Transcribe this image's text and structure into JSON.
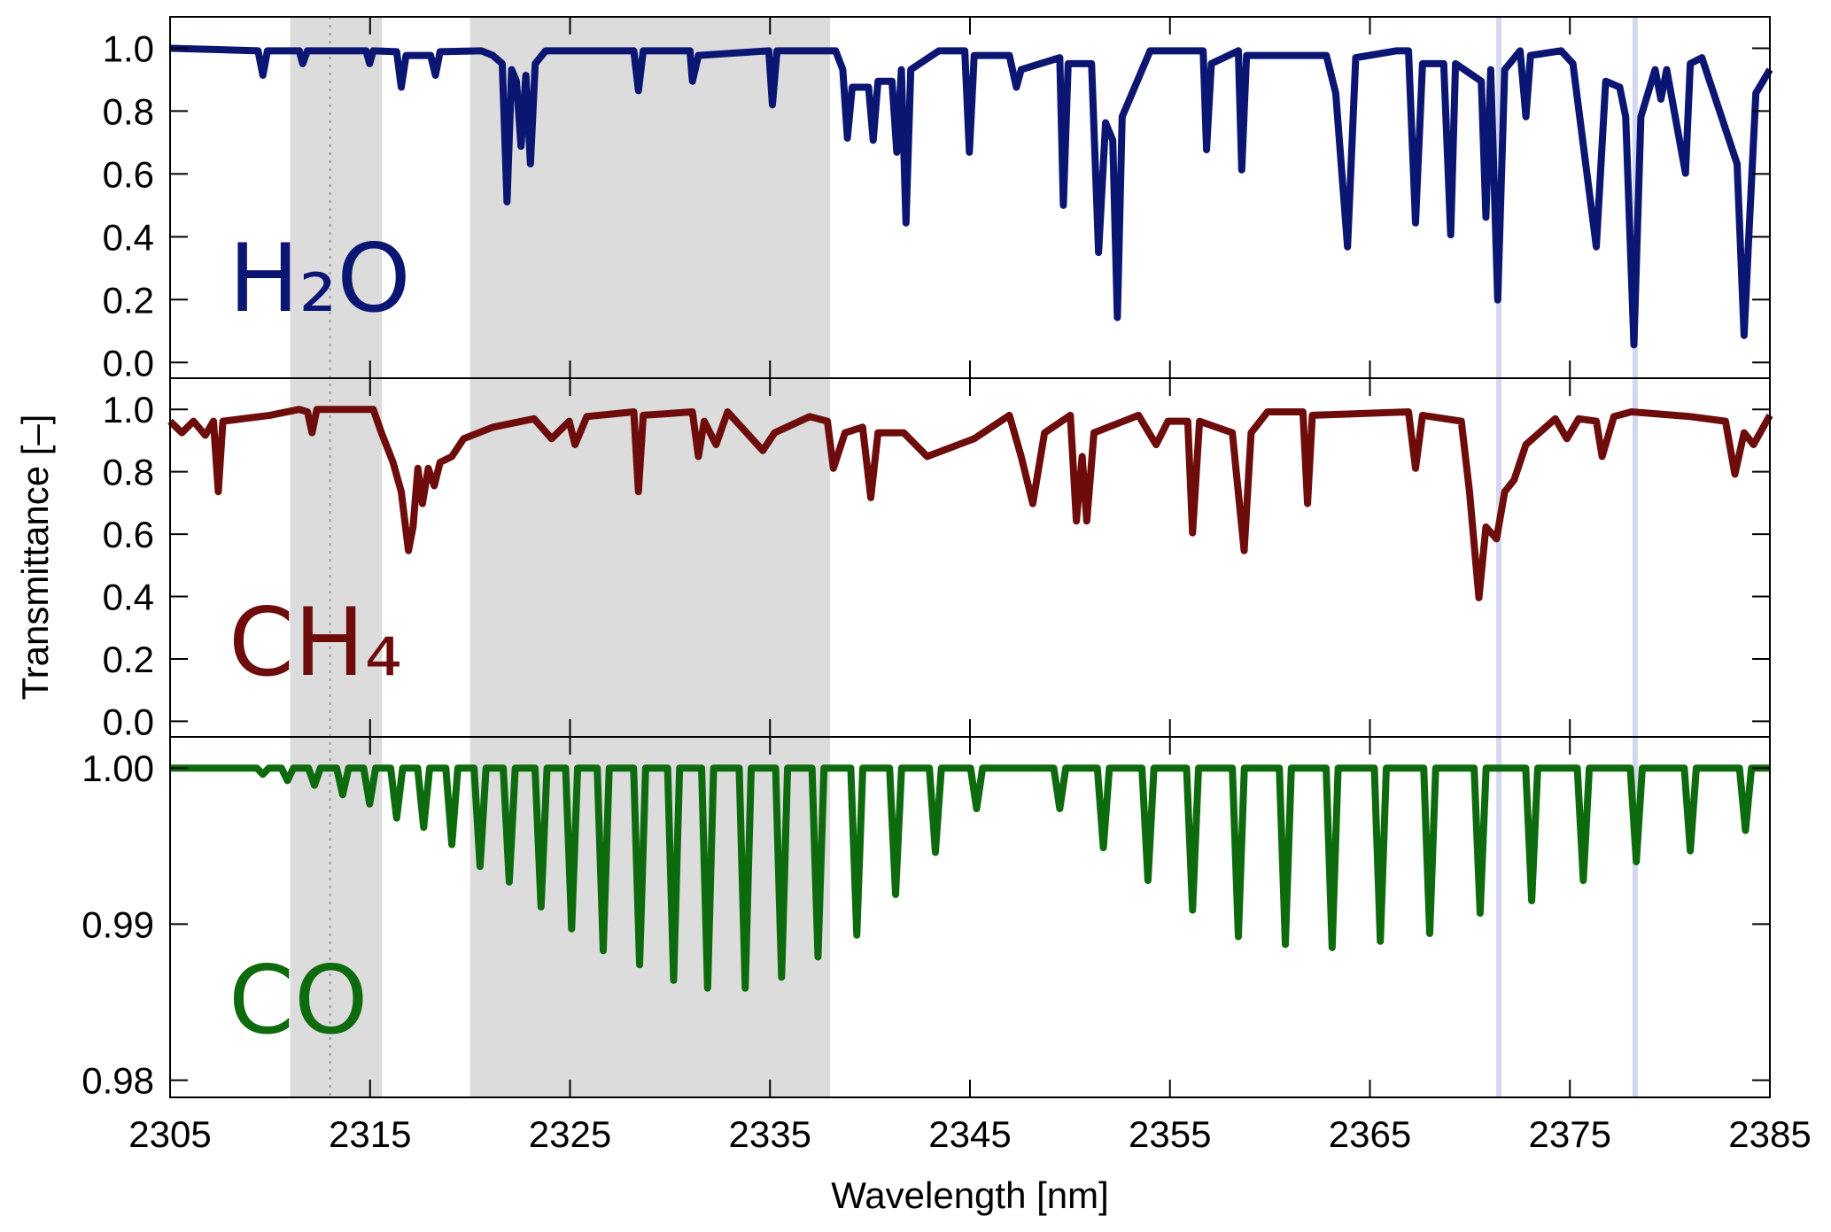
{
  "shaded_regions": [
    [
      2311,
      2315.6
    ],
    [
      2320,
      2338
    ]
  ],
  "highlight_lines": [
    2371.45,
    2378.26
  ],
  "reference_line": 2313,
  "chart_data": [
    {
      "type": "line",
      "annotation": "H₂O",
      "color": "#0b1572",
      "xlim": [
        2305,
        2385
      ],
      "xticks": [
        2305,
        2315,
        2325,
        2335,
        2345,
        2355,
        2365,
        2375,
        2385
      ],
      "ylim": [
        -0.05,
        1.1
      ],
      "yticks": [
        {
          "value": 0,
          "label": "0.0"
        },
        0.2,
        0.4,
        0.6,
        0.8,
        {
          "value": 1,
          "label": "1.0"
        }
      ],
      "x": [
        2305.0,
        2309.4,
        2309.64,
        2309.87,
        2311.46,
        2311.63,
        2311.87,
        2314.8,
        2314.98,
        2315.16,
        2316.33,
        2316.56,
        2316.8,
        2318.03,
        2318.27,
        2318.5,
        2320.56,
        2321.14,
        2321.61,
        2321.85,
        2322.08,
        2322.32,
        2322.55,
        2322.79,
        2323.02,
        2323.26,
        2323.78,
        2328.19,
        2328.42,
        2328.66,
        2331.0,
        2331.12,
        2331.42,
        2334.94,
        2335.12,
        2335.35,
        2338.28,
        2338.64,
        2338.87,
        2339.11,
        2339.93,
        2340.16,
        2340.4,
        2341.1,
        2341.34,
        2341.57,
        2341.8,
        2342.04,
        2343.45,
        2344.74,
        2344.97,
        2345.21,
        2346.97,
        2347.32,
        2347.56,
        2349.49,
        2349.67,
        2349.91,
        2351.08,
        2351.43,
        2351.78,
        2352.14,
        2352.37,
        2352.61,
        2354.01,
        2356.66,
        2356.83,
        2357.07,
        2358.42,
        2358.59,
        2358.83,
        2362.82,
        2363.29,
        2363.88,
        2364.29,
        2366.34,
        2366.93,
        2367.28,
        2367.63,
        2368.69,
        2369.04,
        2369.28,
        2370.57,
        2370.8,
        2371.04,
        2371.39,
        2371.74,
        2372.51,
        2372.8,
        2373.03,
        2374.56,
        2375.15,
        2376.32,
        2376.79,
        2377.49,
        2377.79,
        2378.2,
        2378.55,
        2379.26,
        2379.55,
        2379.84,
        2380.78,
        2381.02,
        2381.6,
        2383.36,
        2383.71,
        2383.95,
        2384.3,
        2385.0
      ],
      "values": [
        1.0,
        0.992,
        0.914,
        0.992,
        0.992,
        0.951,
        0.992,
        0.992,
        0.951,
        0.992,
        0.989,
        0.876,
        0.977,
        0.977,
        0.914,
        0.989,
        0.992,
        0.977,
        0.951,
        0.511,
        0.932,
        0.895,
        0.688,
        0.914,
        0.632,
        0.951,
        0.992,
        0.992,
        0.865,
        0.992,
        0.992,
        0.895,
        0.977,
        0.992,
        0.82,
        0.992,
        0.992,
        0.932,
        0.714,
        0.876,
        0.876,
        0.707,
        0.895,
        0.895,
        0.669,
        0.932,
        0.444,
        0.932,
        0.992,
        0.992,
        0.669,
        0.977,
        0.977,
        0.876,
        0.932,
        0.97,
        0.5,
        0.951,
        0.951,
        0.35,
        0.763,
        0.707,
        0.143,
        0.782,
        0.992,
        0.992,
        0.677,
        0.951,
        0.992,
        0.613,
        0.977,
        0.977,
        0.857,
        0.368,
        0.97,
        0.992,
        0.992,
        0.444,
        0.951,
        0.951,
        0.406,
        0.951,
        0.895,
        0.462,
        0.932,
        0.199,
        0.932,
        0.992,
        0.782,
        0.977,
        0.992,
        0.951,
        0.368,
        0.895,
        0.876,
        0.782,
        0.056,
        0.782,
        0.932,
        0.838,
        0.932,
        0.602,
        0.951,
        0.97,
        0.632,
        0.086,
        0.406,
        0.857,
        0.932
      ]
    },
    {
      "type": "line",
      "annotation": "CH₄",
      "color": "#6e0b0b",
      "ylabel": "Transmittance [–]",
      "xlim": [
        2305,
        2385
      ],
      "xticks": [
        2305,
        2315,
        2325,
        2335,
        2345,
        2355,
        2365,
        2375,
        2385
      ],
      "ylim": [
        -0.05,
        1.1
      ],
      "yticks": [
        {
          "value": 0,
          "label": "0.0"
        },
        0.2,
        0.4,
        0.6,
        0.8,
        {
          "value": 1,
          "label": "1.0"
        }
      ],
      "x": [
        2305.0,
        2305.59,
        2306.17,
        2306.76,
        2307.17,
        2307.41,
        2307.64,
        2309.99,
        2311.46,
        2311.87,
        2312.1,
        2312.34,
        2315.16,
        2315.57,
        2316.15,
        2316.56,
        2316.92,
        2317.15,
        2317.39,
        2317.62,
        2317.91,
        2318.21,
        2318.5,
        2319.09,
        2319.68,
        2321.14,
        2323.2,
        2324.08,
        2324.96,
        2325.25,
        2325.84,
        2328.19,
        2328.42,
        2328.66,
        2331.12,
        2331.42,
        2331.71,
        2332.3,
        2332.88,
        2334.64,
        2335.23,
        2336.99,
        2337.87,
        2338.17,
        2338.75,
        2339.63,
        2340.04,
        2340.4,
        2341.69,
        2342.86,
        2345.21,
        2346.97,
        2347.56,
        2348.14,
        2348.73,
        2350.02,
        2350.32,
        2350.61,
        2350.84,
        2351.2,
        2353.43,
        2354.31,
        2354.9,
        2355.89,
        2356.13,
        2356.48,
        2358.12,
        2358.71,
        2359.06,
        2359.88,
        2361.65,
        2361.88,
        2362.12,
        2366.93,
        2367.28,
        2367.63,
        2369.57,
        2369.98,
        2370.45,
        2370.8,
        2371.33,
        2371.74,
        2372.21,
        2372.8,
        2374.27,
        2374.85,
        2375.44,
        2376.32,
        2376.61,
        2377.2,
        2378.08,
        2381.02,
        2382.78,
        2383.25,
        2383.71,
        2384.18,
        2385.0
      ],
      "values": [
        0.962,
        0.925,
        0.962,
        0.917,
        0.962,
        0.736,
        0.962,
        0.981,
        1.0,
        0.992,
        0.925,
        1.0,
        1.0,
        0.925,
        0.83,
        0.736,
        0.547,
        0.623,
        0.811,
        0.698,
        0.811,
        0.755,
        0.83,
        0.849,
        0.906,
        0.943,
        0.97,
        0.906,
        0.962,
        0.887,
        0.977,
        0.992,
        0.736,
        0.981,
        0.992,
        0.849,
        0.962,
        0.887,
        0.992,
        0.868,
        0.925,
        0.977,
        0.962,
        0.811,
        0.925,
        0.943,
        0.717,
        0.925,
        0.925,
        0.849,
        0.906,
        0.981,
        0.849,
        0.698,
        0.925,
        0.981,
        0.642,
        0.849,
        0.642,
        0.925,
        0.981,
        0.887,
        0.962,
        0.962,
        0.604,
        0.962,
        0.925,
        0.547,
        0.925,
        0.992,
        0.992,
        0.698,
        0.981,
        0.992,
        0.811,
        0.981,
        0.962,
        0.736,
        0.396,
        0.623,
        0.585,
        0.736,
        0.774,
        0.887,
        0.97,
        0.906,
        0.97,
        0.962,
        0.849,
        0.977,
        0.992,
        0.977,
        0.962,
        0.792,
        0.925,
        0.887,
        0.981
      ]
    },
    {
      "type": "line",
      "annotation": "CO",
      "color": "#0d6b0d",
      "xlabel": "Wavelength [nm]",
      "xlim": [
        2305,
        2385
      ],
      "xticks": [
        2305,
        2315,
        2325,
        2335,
        2345,
        2355,
        2365,
        2375,
        2385
      ],
      "ylim": [
        0.9789,
        1.002
      ],
      "yticks": [
        0.98,
        0.99,
        {
          "value": 1,
          "label": "1.00"
        }
      ],
      "x": [
        2305,
        2309.34,
        2309.64,
        2309.94,
        2310.57,
        2310.87,
        2311.17,
        2311.92,
        2312.22,
        2312.52,
        2313.33,
        2313.63,
        2313.93,
        2314.68,
        2314.98,
        2315.28,
        2316.03,
        2316.33,
        2316.63,
        2317.38,
        2317.68,
        2317.98,
        2318.79,
        2319.09,
        2319.39,
        2320.2,
        2320.5,
        2320.8,
        2321.66,
        2321.96,
        2322.26,
        2323.25,
        2323.55,
        2323.85,
        2324.78,
        2325.08,
        2325.38,
        2326.36,
        2326.66,
        2326.96,
        2328.18,
        2328.48,
        2328.78,
        2329.88,
        2330.18,
        2330.48,
        2331.58,
        2331.88,
        2332.18,
        2333.46,
        2333.76,
        2334.06,
        2335.28,
        2335.58,
        2335.88,
        2337.1,
        2337.4,
        2337.7,
        2339.04,
        2339.34,
        2339.64,
        2340.98,
        2341.28,
        2341.58,
        2342.97,
        2343.27,
        2343.57,
        2345.03,
        2345.33,
        2345.63,
        2349.19,
        2349.49,
        2349.79,
        2351.37,
        2351.67,
        2351.97,
        2353.6,
        2353.9,
        2354.2,
        2355.83,
        2356.13,
        2356.43,
        2358.12,
        2358.42,
        2358.72,
        2360.47,
        2360.77,
        2361.07,
        2362.81,
        2363.11,
        2363.41,
        2365.22,
        2365.52,
        2365.82,
        2367.69,
        2367.99,
        2368.29,
        2370.21,
        2370.51,
        2370.81,
        2372.79,
        2373.09,
        2373.39,
        2375.37,
        2375.67,
        2375.97,
        2378.02,
        2378.32,
        2378.62,
        2380.72,
        2381.02,
        2381.32,
        2383.48,
        2383.78,
        2384.08,
        2385
      ],
      "values": [
        1,
        1,
        0.9996,
        1,
        1,
        0.9992,
        1,
        1,
        0.9989,
        1,
        1,
        0.9983,
        1,
        1,
        0.9977,
        1,
        1,
        0.9968,
        1,
        1,
        0.9962,
        1,
        1,
        0.9951,
        1,
        1,
        0.9937,
        1,
        1,
        0.9927,
        1,
        1,
        0.9911,
        1,
        1,
        0.9897,
        1,
        1,
        0.9883,
        1,
        1,
        0.9874,
        1,
        1,
        0.9864,
        1,
        1,
        0.9859,
        1,
        1,
        0.9859,
        1,
        1,
        0.9866,
        1,
        1,
        0.9879,
        1,
        1,
        0.9893,
        1,
        1,
        0.9919,
        1,
        1,
        0.9946,
        1,
        1,
        0.9974,
        1,
        1,
        0.9974,
        1,
        1,
        0.9949,
        1,
        1,
        0.9928,
        1,
        1,
        0.9909,
        1,
        1,
        0.9892,
        1,
        1,
        0.9887,
        1,
        1,
        0.9885,
        1,
        1,
        0.9889,
        1,
        1,
        0.9894,
        1,
        1,
        0.9907,
        1,
        1,
        0.9915,
        1,
        1,
        0.9928,
        1,
        1,
        0.994,
        1,
        1,
        0.9947,
        1,
        1,
        0.996,
        1,
        1
      ]
    }
  ]
}
